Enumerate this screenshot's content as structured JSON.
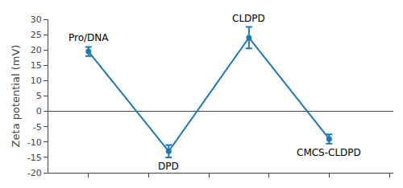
{
  "chart_data": {
    "type": "line",
    "x": [
      1,
      2,
      3,
      4
    ],
    "values": [
      19.5,
      -13.0,
      24.0,
      -9.0
    ],
    "yerr": [
      1.5,
      2.0,
      3.5,
      1.5
    ],
    "annotations": [
      {
        "text": "Pro/DNA",
        "x": 1,
        "y": 19.5
      },
      {
        "text": "DPD",
        "x": 2,
        "y": -13.0
      },
      {
        "text": "CLDPD",
        "x": 3,
        "y": 24.0
      },
      {
        "text": "CMCS-CLDPD",
        "x": 4,
        "y": -9.0
      }
    ],
    "ylabel": "Zeta potential (mV)",
    "xlim": [
      0.5,
      4.8
    ],
    "xticks": [
      1,
      1.75,
      2.5,
      3.25,
      4.0,
      4.75
    ],
    "ylim": [
      -20,
      30
    ],
    "yticks": [
      -20,
      -15,
      -10,
      -5,
      0,
      5,
      10,
      15,
      20,
      25,
      30
    ],
    "grid": false,
    "marker": "circle",
    "tick_labels": "y"
  }
}
